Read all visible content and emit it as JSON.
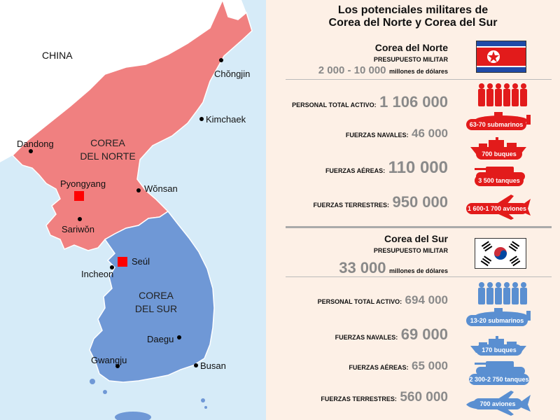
{
  "title_line1": "Los potenciales militares de",
  "title_line2": "Corea del Norte y Corea del Sur",
  "map": {
    "china": "CHINA",
    "nk_line1": "COREA",
    "nk_line2": "DEL NORTE",
    "sk_line1": "COREA",
    "sk_line2": "DEL SUR",
    "cities": {
      "chongjin": "Chŏngjin",
      "kimchaek": "Kimchaek",
      "dandong": "Dandong",
      "pyongyang": "Pyongyang",
      "wonsan": "Wŏnsan",
      "sariwon": "Sariwŏn",
      "seul": "Seúl",
      "incheon": "Incheon",
      "daegu": "Daegu",
      "gwangju": "Gwangju",
      "busan": "Busan"
    },
    "colors": {
      "sea": "#d6ebf8",
      "china": "#ffffff",
      "north": "#f08080",
      "south": "#6f98d6",
      "capital": "#ff0000"
    }
  },
  "north": {
    "name": "Corea del Norte",
    "budget_label": "PRESUPUESTO MILITAR",
    "budget_value": "2 000 - 10 000",
    "budget_unit": "millones de dólares",
    "stats": [
      {
        "label": "PERSONAL TOTAL ACTIVO:",
        "value": "1 106 000"
      },
      {
        "label": "FUERZAS NAVALES:",
        "value": "46 000"
      },
      {
        "label": "FUERZAS AÉREAS:",
        "value": "110 000"
      },
      {
        "label": "FUERZAS TERRESTRES:",
        "value": "950 000"
      }
    ],
    "badges": [
      "63-70 submarinos",
      "700 buques",
      "3 500 tanques",
      "1 600-1 700 aviones"
    ],
    "color": "#e21b1b"
  },
  "south": {
    "name": "Corea del Sur",
    "budget_label": "PRESUPUESTO MILITAR",
    "budget_value": "33 000",
    "budget_unit": "millones de dólares",
    "stats": [
      {
        "label": "PERSONAL TOTAL ACTIVO:",
        "value": "694 000"
      },
      {
        "label": "FUERZAS NAVALES:",
        "value": "69 000"
      },
      {
        "label": "FUERZAS AÉREAS:",
        "value": "65 000"
      },
      {
        "label": "FUERZAS TERRESTRES:",
        "value": "560 000"
      }
    ],
    "badges": [
      "13-20 submarinos",
      "170 buques",
      "2 300-2 750 tanques",
      "700 aviones"
    ],
    "color": "#5a8fd1"
  }
}
